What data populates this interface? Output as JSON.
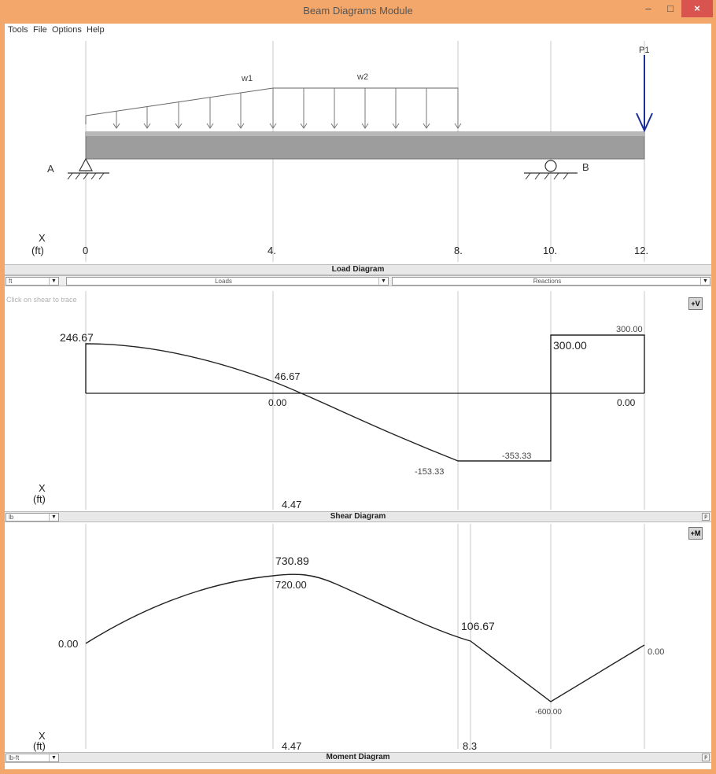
{
  "window": {
    "title": "Beam Diagrams Module",
    "min_glyph": "–",
    "max_glyph": "□",
    "close_glyph": "×"
  },
  "menu": [
    "Tools",
    "File",
    "Options",
    "Help"
  ],
  "load_diagram": {
    "axis_x": "X",
    "axis_unit": "(ft)",
    "positions": [
      "0",
      "4.",
      "8.",
      "10.",
      "12."
    ],
    "label_A": "A",
    "label_B": "B",
    "load_w1": "w1",
    "load_w2": "w2",
    "load_p1": "P1",
    "bar_title": "Load Diagram",
    "combo_units": "ft",
    "combo_loads": "Loads",
    "combo_reactions": "Reactions"
  },
  "shear_diagram": {
    "hint": "Click on shear to trace",
    "badge": "+V",
    "axis_x": "X",
    "axis_unit": "(ft)",
    "zero_crossing": "4.47",
    "values": {
      "start": "246.67",
      "at_4": "46.67",
      "zero_left": "0.00",
      "at_8": "-153.33",
      "at_10_left": "-353.33",
      "at_10_right": "300.00",
      "end_top": "300.00",
      "end_zero": "0.00"
    },
    "bar_title": "Shear Diagram",
    "combo_units": "lb",
    "side_btn": "p"
  },
  "moment_diagram": {
    "badge": "+M",
    "axis_x": "X",
    "axis_unit": "(ft)",
    "pos_max": "4.47",
    "pos_zero": "8.3",
    "values": {
      "start": "0.00",
      "max": "730.89",
      "at_4": "720.00",
      "at_8": "106.67",
      "at_10": "-600.00",
      "end": "0.00"
    },
    "bar_title": "Moment Diagram",
    "combo_units": "lb-ft",
    "side_btn": "p"
  },
  "colors": {
    "window_frame": "#f3a76a",
    "beam": "#9d9d9d",
    "point_load": "#1a2f9c",
    "close_button": "#d9534f"
  }
}
